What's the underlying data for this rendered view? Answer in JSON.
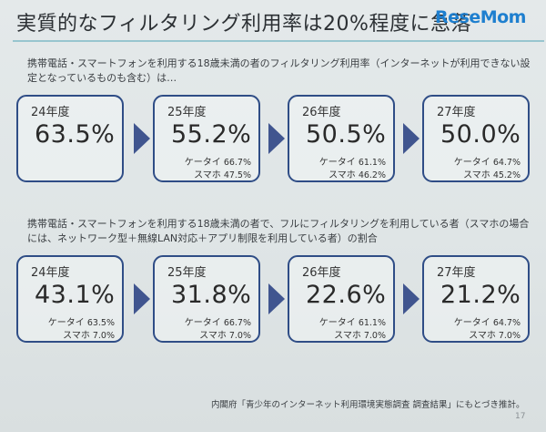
{
  "title": "実質的なフィルタリング利用率は20%程度に急落",
  "logo": {
    "text_main": "ReseMom",
    "text_dot": ""
  },
  "section1": {
    "description": "携帯電話・スマートフォンを利用する18歳未満の者のフィルタリング利用率（インターネットが利用できない設定となっているものも含む）は…",
    "cards": [
      {
        "year": "24年度",
        "value": "63.5%",
        "sub1_label": "",
        "sub1_value": "",
        "sub2_label": "",
        "sub2_value": ""
      },
      {
        "year": "25年度",
        "value": "55.2%",
        "sub1_label": "ケータイ",
        "sub1_value": "66.7%",
        "sub2_label": "スマホ",
        "sub2_value": "47.5%"
      },
      {
        "year": "26年度",
        "value": "50.5%",
        "sub1_label": "ケータイ",
        "sub1_value": "61.1%",
        "sub2_label": "スマホ",
        "sub2_value": "46.2%"
      },
      {
        "year": "27年度",
        "value": "50.0%",
        "sub1_label": "ケータイ",
        "sub1_value": "64.7%",
        "sub2_label": "スマホ",
        "sub2_value": "45.2%"
      }
    ]
  },
  "section2": {
    "description": "携帯電話・スマートフォンを利用する18歳未満の者で、フルにフィルタリングを利用している者（スマホの場合には、ネットワーク型＋無線LAN対応＋アプリ制限を利用している者）の割合",
    "cards": [
      {
        "year": "24年度",
        "value": "43.1%",
        "sub1_label": "ケータイ",
        "sub1_value": "63.5%",
        "sub2_label": "スマホ",
        "sub2_value": "7.0%"
      },
      {
        "year": "25年度",
        "value": "31.8%",
        "sub1_label": "ケータイ",
        "sub1_value": "66.7%",
        "sub2_label": "スマホ",
        "sub2_value": "7.0%"
      },
      {
        "year": "26年度",
        "value": "22.6%",
        "sub1_label": "ケータイ",
        "sub1_value": "61.1%",
        "sub2_label": "スマホ",
        "sub2_value": "7.0%"
      },
      {
        "year": "27年度",
        "value": "21.2%",
        "sub1_label": "ケータイ",
        "sub1_value": "64.7%",
        "sub2_label": "スマホ",
        "sub2_value": "7.0%"
      }
    ]
  },
  "footnote": "内閣府「青少年のインターネット利用環境実態調査 調査結果」にもとづき推計。",
  "page_number": "17",
  "colors": {
    "card_border": "#2f4d86",
    "arrow": "#40558f",
    "rule": "#98c5cf"
  }
}
